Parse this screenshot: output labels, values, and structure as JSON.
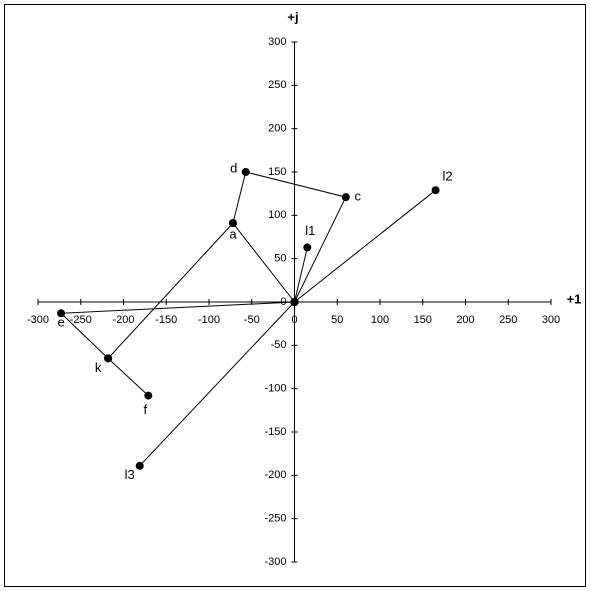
{
  "chart_data": {
    "type": "phasor",
    "x_label": "+1",
    "y_label": "+j",
    "xlim": [
      -300,
      300
    ],
    "ylim": [
      -300,
      300
    ],
    "xticks": [
      -300,
      -250,
      -200,
      -150,
      -100,
      -50,
      0,
      50,
      100,
      150,
      200,
      250,
      300
    ],
    "yticks": [
      -300,
      -250,
      -200,
      -150,
      -100,
      -50,
      0,
      50,
      100,
      150,
      200,
      250,
      300
    ],
    "color": "#000000",
    "series": [
      {
        "x": [
          0,
          -72,
          -57,
          60,
          0
        ],
        "y": [
          0,
          91,
          150,
          121,
          0
        ],
        "labels": [
          null,
          "a",
          "d",
          "c",
          null
        ]
      },
      {
        "x": [
          0,
          15
        ],
        "y": [
          0,
          63
        ],
        "labels": [
          null,
          "l1"
        ]
      },
      {
        "x": [
          0,
          165
        ],
        "y": [
          0,
          129
        ],
        "labels": [
          null,
          "l2"
        ]
      },
      {
        "x": [
          0,
          -273,
          -218,
          -171
        ],
        "y": [
          0,
          -13,
          -65,
          -108
        ],
        "labels": [
          null,
          "e",
          "k",
          "f"
        ]
      },
      {
        "x": [
          -218,
          -72
        ],
        "y": [
          -65,
          91
        ],
        "labels": [
          null,
          null
        ]
      },
      {
        "x": [
          0,
          -181
        ],
        "y": [
          0,
          -189
        ],
        "labels": [
          null,
          "l3"
        ]
      }
    ]
  }
}
